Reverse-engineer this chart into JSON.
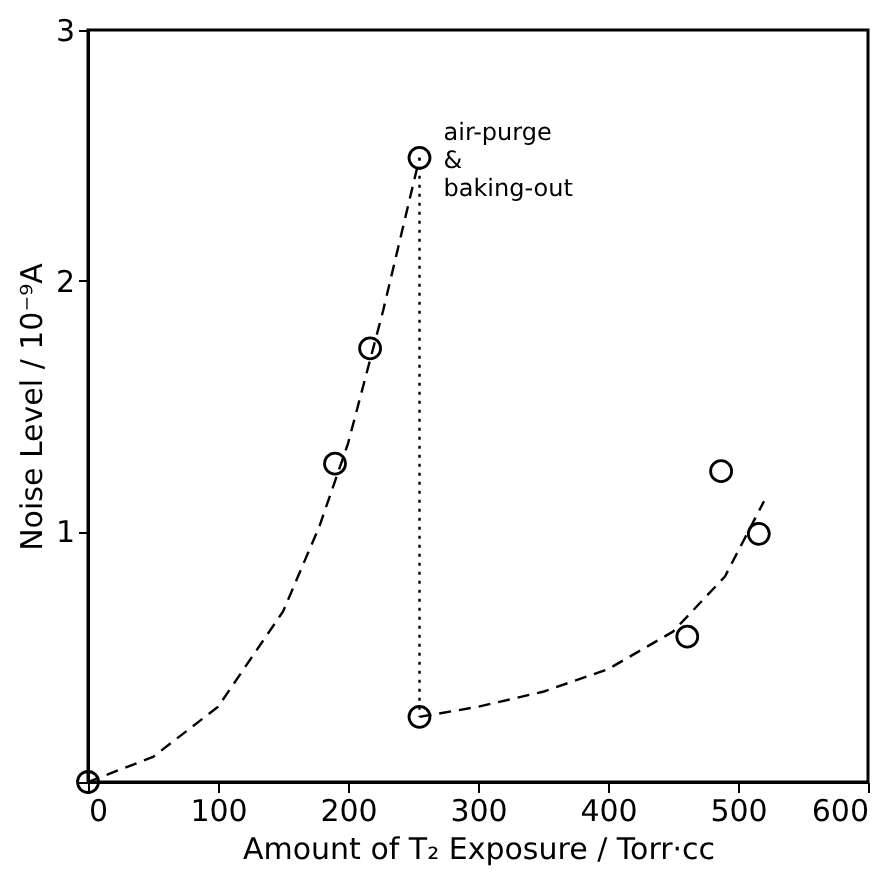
{
  "chart_data": {
    "type": "scatter",
    "xlabel": "Amount of T₂ Exposure / Torr·cc",
    "ylabel": "Noise Level / 10⁻⁹A",
    "xlim": [
      0,
      600
    ],
    "ylim": [
      0,
      3
    ],
    "xticks": [
      0,
      100,
      200,
      300,
      400,
      500,
      600
    ],
    "yticks": [
      {
        "value": 0,
        "label": null
      },
      1,
      2,
      3
    ],
    "grid": false,
    "series": [
      {
        "color": "#000000",
        "marker": "circle",
        "x": [
          0,
          190,
          217,
          255,
          255,
          461,
          487,
          516
        ],
        "values": [
          0.0,
          1.27,
          1.73,
          2.49,
          0.26,
          0.58,
          1.24,
          0.99
        ]
      },
      {
        "type": "line",
        "color": "#000000",
        "line_style": "dashed",
        "x": [
          0,
          50,
          100,
          150,
          178,
          200,
          227,
          255
        ],
        "values": [
          0.0,
          0.1,
          0.3,
          0.68,
          1.02,
          1.35,
          1.88,
          2.49
        ]
      },
      {
        "type": "line",
        "color": "#000000",
        "line_style": "dotted",
        "x": [
          255,
          255
        ],
        "values": [
          2.49,
          0.26
        ]
      },
      {
        "type": "line",
        "color": "#000000",
        "line_style": "dashed",
        "x": [
          255,
          300,
          350,
          400,
          450,
          490,
          520
        ],
        "values": [
          0.26,
          0.3,
          0.36,
          0.45,
          0.6,
          0.82,
          1.12
        ]
      }
    ],
    "annotations": [
      {
        "text": "air-purge\n&\nbaking-out",
        "x": 255,
        "y": 2.49
      }
    ]
  }
}
